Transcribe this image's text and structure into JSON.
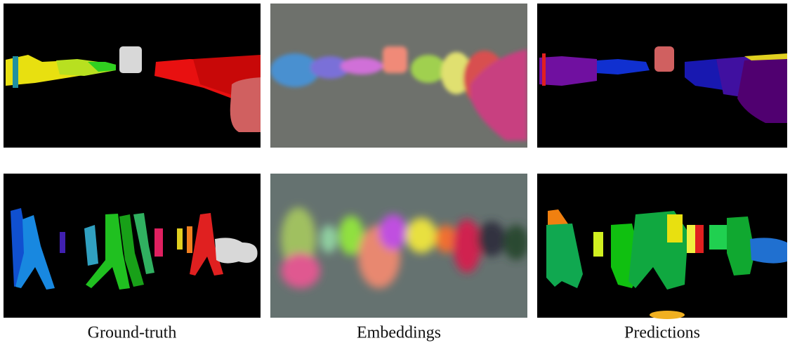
{
  "captions": [
    "Ground-truth",
    "Embeddings",
    "Predictions"
  ]
}
